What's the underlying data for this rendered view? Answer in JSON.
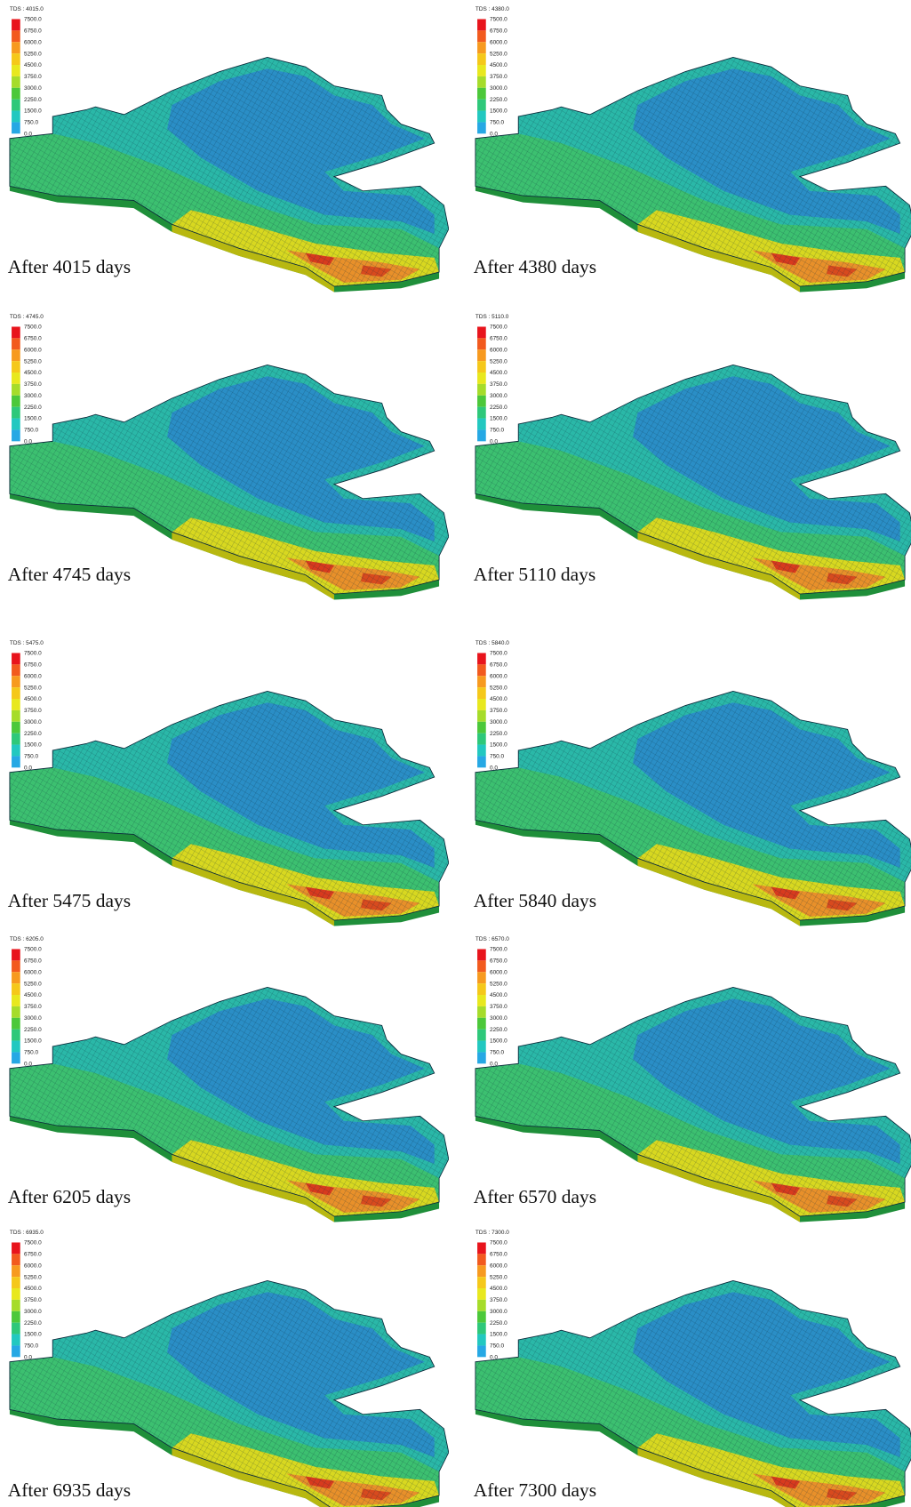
{
  "legend": {
    "levels": [
      "7500.0",
      "6750.0",
      "6000.0",
      "5250.0",
      "4500.0",
      "3750.0",
      "3000.0",
      "2250.0",
      "1500.0",
      "750.0",
      "0.0"
    ],
    "colors": [
      "#e8141c",
      "#f25a1e",
      "#f79a1f",
      "#f5c81a",
      "#e8e81e",
      "#a6dc2a",
      "#4cc83a",
      "#2ec87a",
      "#22c8c0",
      "#26a8e4"
    ]
  },
  "panels": [
    {
      "legend_title": "TDS : 4015.0",
      "caption": "After 4015 days"
    },
    {
      "legend_title": "TDS : 4380.0",
      "caption": "After 4380 days"
    },
    {
      "legend_title": "TDS : 4745.0",
      "caption": "After 4745 days"
    },
    {
      "legend_title": "TDS : 5110.0",
      "caption": "After 5110 days"
    },
    {
      "legend_title": "TDS : 5475.0",
      "caption": "After 5475 days"
    },
    {
      "legend_title": "TDS : 5840.0",
      "caption": "After 5840 days"
    },
    {
      "legend_title": "TDS : 6205.0",
      "caption": "After 6205 days"
    },
    {
      "legend_title": "TDS : 6570.0",
      "caption": "After 6570 days"
    },
    {
      "legend_title": "TDS : 6935.0",
      "caption": "After 6935 days"
    },
    {
      "legend_title": "TDS : 7300.0",
      "caption": "After 7300 days"
    }
  ]
}
